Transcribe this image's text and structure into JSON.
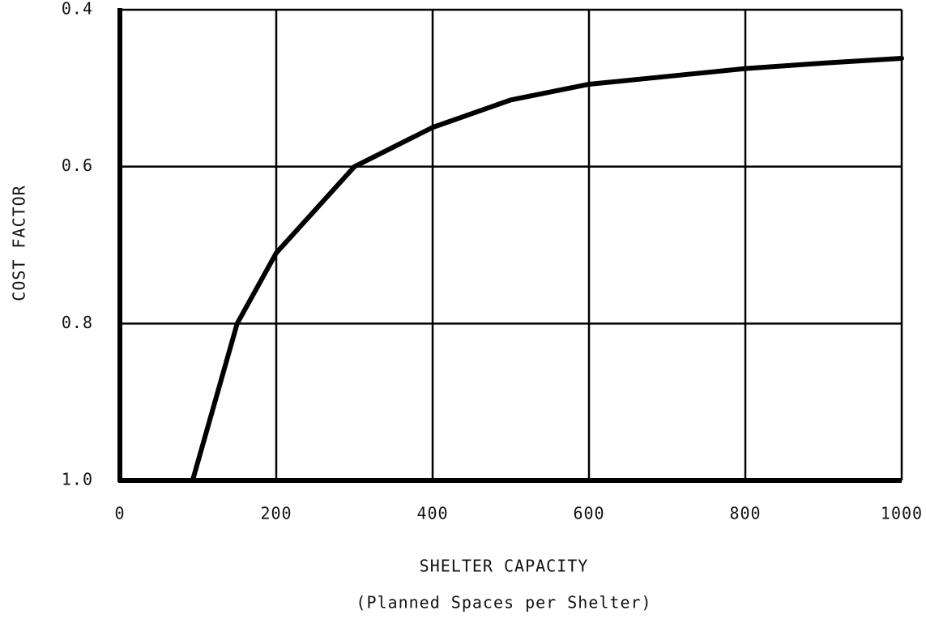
{
  "chart_data": {
    "type": "line",
    "y_label": "COST FACTOR",
    "x_label": "SHELTER CAPACITY",
    "x_sublabel": "(Planned Spaces per Shelter)",
    "x": [
      93,
      150,
      200,
      250,
      300,
      400,
      500,
      600,
      700,
      800,
      900,
      1000
    ],
    "series": [
      {
        "color": "#000000",
        "values": [
          1.0,
          0.8,
          0.71,
          0.655,
          0.6,
          0.55,
          0.515,
          0.495,
          0.485,
          0.475,
          0.468,
          0.462
        ]
      }
    ],
    "xlim": [
      0,
      1000
    ],
    "xticks": [
      0,
      200,
      400,
      600,
      800,
      1000
    ],
    "ylim": [
      1,
      0.4
    ],
    "yticks": [
      0.4,
      0.6,
      0.8,
      {
        "value": 1,
        "label": "1.0"
      }
    ],
    "grid": true
  }
}
